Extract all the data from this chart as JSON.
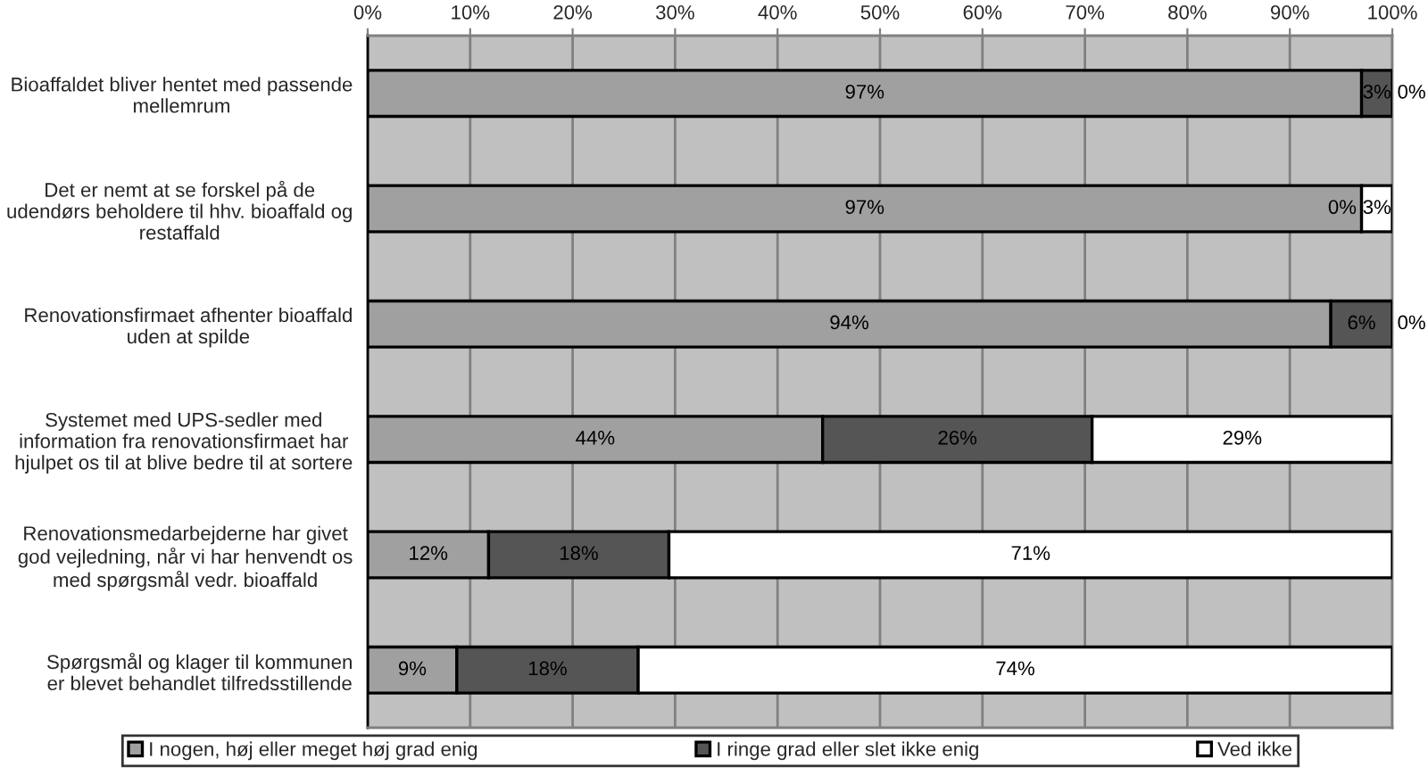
{
  "chart_data": {
    "type": "bar",
    "orientation": "horizontal",
    "stacked": true,
    "categories": [
      "Bioaffaldet bliver hentet med passende\nmellemrum",
      "Det er nemt at se forskel på de\nudendørs beholdere til hhv. bioaffald og\nrestaffald",
      "Renovationsfirmaet afhenter bioaffald\nuden at spilde",
      "Systemet med UPS-sedler med\ninformation fra renovationsfirmaet har\nhjulpet os til at blive bedre til at sortere",
      "Renovationsmedarbejderne har givet\ngod vejledning, når vi har henvendt os\nmed spørgsmål vedr. bioaffald",
      "Spørgsmål og klager til kommunen\ner blevet behandlet tilfredsstillende"
    ],
    "series": [
      {
        "name": "I nogen, høj eller meget høj grad enig",
        "color": "#a0a0a0",
        "values": [
          97,
          97,
          94,
          44.4,
          11.8,
          8.7
        ],
        "value_labels": [
          "97%",
          "97%",
          "94%",
          "44%",
          "12%",
          "9%"
        ]
      },
      {
        "name": "I ringe grad eller slet ikke enig",
        "color": "#555555",
        "values": [
          3,
          0,
          6,
          26.3,
          17.6,
          17.7
        ],
        "value_labels": [
          "3%",
          "0%",
          "6%",
          "26%",
          "18%",
          "18%"
        ]
      },
      {
        "name": "Ved ikke",
        "color": "#ffffff",
        "values": [
          0,
          3,
          0,
          29.3,
          70.6,
          73.6
        ],
        "value_labels": [
          "0%",
          "3%",
          "0%",
          "29%",
          "71%",
          "74%"
        ]
      }
    ],
    "xlim": [
      0,
      100
    ],
    "xticks": [
      {
        "value": 0,
        "label": "0%"
      },
      {
        "value": 10,
        "label": "10%"
      },
      {
        "value": 20,
        "label": "20%"
      },
      {
        "value": 30,
        "label": "30%"
      },
      {
        "value": 40,
        "label": "40%"
      },
      {
        "value": 50,
        "label": "50%"
      },
      {
        "value": 60,
        "label": "60%"
      },
      {
        "value": 70,
        "label": "70%"
      },
      {
        "value": 80,
        "label": "80%"
      },
      {
        "value": 90,
        "label": "90%"
      },
      {
        "value": 100,
        "label": "100%"
      }
    ],
    "grid": "x",
    "legend": "bottom"
  }
}
